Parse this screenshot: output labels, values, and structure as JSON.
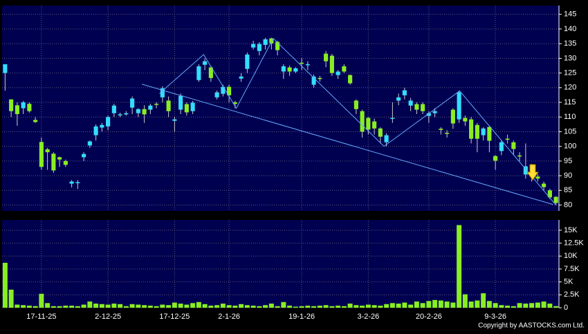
{
  "chart_data": [
    {
      "type": "candlestick",
      "categories": [
        null,
        null,
        null,
        null,
        null,
        null,
        "17-11-25",
        null,
        null,
        null,
        null,
        null,
        null,
        null,
        null,
        null,
        null,
        "2-12-25",
        null,
        null,
        null,
        null,
        null,
        null,
        null,
        null,
        null,
        null,
        "17-12-25",
        null,
        null,
        null,
        null,
        null,
        null,
        null,
        null,
        "2-1-26",
        null,
        null,
        null,
        null,
        null,
        null,
        null,
        null,
        null,
        null,
        null,
        "19-1-26",
        null,
        null,
        null,
        null,
        null,
        null,
        null,
        null,
        null,
        null,
        "3-2-26",
        null,
        null,
        null,
        null,
        null,
        null,
        null,
        null,
        null,
        "20-2-26",
        null,
        null,
        null,
        null,
        null,
        null,
        null,
        null,
        null,
        null,
        "9-3-26",
        null,
        null,
        null,
        null,
        null,
        null,
        null,
        null,
        null,
        null
      ],
      "open": [
        125,
        116,
        114,
        113,
        114.5,
        109,
        101.5,
        99,
        97.5,
        96.3,
        95,
        87.3,
        87.5,
        96.3,
        100.3,
        103.8,
        106.4,
        106.8,
        111.3,
        110.6,
        110.9,
        113.2,
        111.3,
        112.7,
        112.5,
        114.5,
        116.7,
        115.6,
        108.7,
        112.5,
        114.4,
        112,
        122.6,
        127.8,
        126.9,
        116.7,
        117.9,
        120.3,
        115,
        123.1,
        126.4,
        133.7,
        132.5,
        134.6,
        136.8,
        135.6,
        125.5,
        126.9,
        125.5,
        128.5,
        127.8,
        121,
        123.3,
        131.6,
        130.9,
        124.3,
        127.3,
        124.3,
        115.6,
        112,
        109.7,
        108.5,
        106.1,
        101.4,
        109.5,
        115.6,
        117.4,
        113.9,
        114.4,
        114.4,
        110.4,
        111.3,
        106,
        104.6,
        112.5,
        109.2,
        109.7,
        109.2,
        107.3,
        103.8,
        106.6,
        96.7,
        98.4,
        102.6,
        101.4,
        96.9,
        90.4,
        89.7,
        89.7,
        87.3,
        85,
        82.8
      ],
      "high": [
        128,
        116,
        115,
        115.5,
        115,
        110,
        103,
        99.5,
        98,
        96.5,
        95.5,
        88.5,
        88.5,
        98,
        102,
        107.5,
        108,
        110.5,
        114.5,
        111.5,
        112,
        117,
        113,
        114,
        114.5,
        115,
        120.5,
        117,
        110,
        118,
        115,
        115.5,
        128,
        130,
        127.5,
        119,
        121,
        121,
        115.5,
        125,
        132,
        136,
        135.5,
        137,
        137,
        136,
        128,
        127.5,
        127,
        130,
        129,
        124.5,
        124,
        132.5,
        131.5,
        126,
        128,
        124.5,
        116,
        112.5,
        110,
        109.5,
        106.5,
        104.5,
        115,
        118,
        120,
        116.5,
        115,
        115,
        112,
        113,
        106.5,
        105.5,
        113,
        119,
        110.5,
        110,
        108,
        106.5,
        107,
        97,
        102,
        104,
        102,
        98,
        101,
        94,
        90.5,
        88,
        85.5,
        83
      ],
      "low": [
        119,
        110,
        107,
        111,
        111.5,
        108,
        92,
        92,
        91,
        93,
        93,
        86,
        85.5,
        95,
        99.5,
        102,
        105,
        105.5,
        110,
        110,
        110.5,
        111,
        110,
        108,
        111,
        113,
        115,
        110,
        105,
        111,
        110.5,
        111,
        122,
        126,
        122,
        116,
        117,
        115,
        113,
        122,
        125,
        133,
        131,
        133,
        133,
        131,
        123,
        124,
        125,
        126,
        126,
        120,
        122,
        127,
        124,
        123,
        125,
        121,
        111,
        103,
        104,
        104,
        101,
        100,
        108,
        114,
        116,
        112,
        111,
        111,
        108,
        110,
        104,
        103,
        106,
        108,
        107,
        101,
        98,
        102,
        98,
        92,
        97,
        101,
        97,
        95,
        89,
        88,
        88,
        85,
        82,
        80
      ],
      "close": [
        128,
        112,
        111,
        115,
        112,
        108.3,
        93,
        98,
        91.8,
        95.5,
        93.7,
        88,
        87.8,
        97.4,
        101.7,
        106.8,
        107.3,
        110,
        113.9,
        110.9,
        111.3,
        116.3,
        112.7,
        110.9,
        113.9,
        114.2,
        119.8,
        112,
        109.2,
        117.2,
        111.6,
        114.9,
        127.3,
        129,
        123.3,
        118.4,
        120.3,
        117.4,
        114.5,
        123.8,
        131.3,
        134.9,
        134.9,
        136.5,
        135.1,
        132.8,
        127.3,
        125.5,
        126.6,
        128.3,
        128,
        123.8,
        123.1,
        129,
        125,
        125.5,
        125.5,
        121.5,
        112.7,
        105,
        105.7,
        106.1,
        103.3,
        103.8,
        109.7,
        116.7,
        119.1,
        115.6,
        112.5,
        112,
        111.3,
        112,
        105.6,
        104.4,
        107.8,
        118.4,
        108.5,
        102.6,
        102.6,
        106.1,
        101.9,
        95.1,
        101.4,
        102.3,
        99.1,
        96.6,
        93.2,
        91.3,
        89,
        86.1,
        82.6,
        80.7
      ],
      "up_color": "#33ddff",
      "down_color": "#88ee22",
      "ylim": [
        78,
        148
      ],
      "yticks": [
        80,
        85,
        90,
        95,
        100,
        105,
        110,
        115,
        120,
        125,
        130,
        135,
        140,
        145
      ],
      "grid": true,
      "lines": [
        {
          "color": "#66aaff",
          "x": [
            22.6,
            90.5
          ],
          "y": [
            121.2,
            80.2
          ]
        },
        {
          "color": "#66aaff",
          "x": [
            25.5,
            32.8,
            38.2,
            44.3,
            62.6,
            75.1,
            91
          ],
          "y": [
            118,
            131.3,
            113,
            136.8,
            100,
            118.9,
            80
          ]
        }
      ]
    },
    {
      "type": "bar",
      "values": [
        8700,
        3500,
        600,
        500,
        400,
        300,
        2700,
        900,
        300,
        300,
        400,
        400,
        300,
        600,
        1200,
        800,
        700,
        600,
        800,
        700,
        300,
        700,
        600,
        500,
        400,
        300,
        600,
        500,
        1000,
        800,
        600,
        900,
        1100,
        700,
        400,
        500,
        800,
        500,
        400,
        700,
        500,
        400,
        300,
        500,
        800,
        300,
        1100,
        400,
        200,
        300,
        400,
        300,
        400,
        500,
        300,
        400,
        300,
        800,
        500,
        400,
        600,
        500,
        400,
        700,
        900,
        800,
        1000,
        600,
        1200,
        900,
        1300,
        1500,
        1400,
        1200,
        1000,
        16000,
        2600,
        1200,
        1400,
        2800,
        1300,
        900,
        500,
        400,
        300,
        900,
        800,
        900,
        1000,
        1200,
        800,
        300
      ],
      "color": "#88ee22",
      "ylim": [
        0,
        17000
      ],
      "yticks": [
        0,
        {
          "value": 2500,
          "label": "2.5K"
        },
        {
          "value": 5000,
          "label": "5K"
        },
        {
          "value": 7500,
          "label": "7.5K"
        },
        {
          "value": 10000,
          "label": "10K"
        },
        {
          "value": 12500,
          "label": "12.5K"
        },
        {
          "value": 15000,
          "label": "15K"
        }
      ],
      "grid": true,
      "footer": "Copyright by AASTOCKS.com Ltd."
    }
  ]
}
